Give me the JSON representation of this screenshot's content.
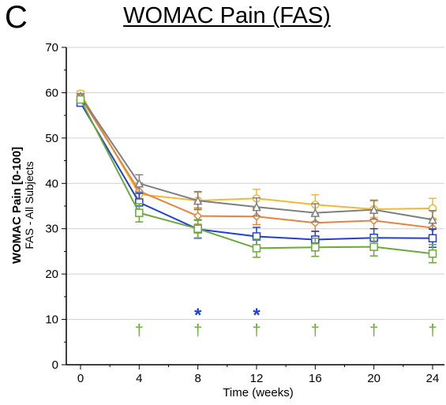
{
  "panel_label": "C",
  "chart_data": {
    "type": "line",
    "title": "WOMAC Pain (FAS)",
    "xlabel": "Time (weeks)",
    "ylabel": "WOMAC Pain [0-100]",
    "ylabel_sub": "FAS - All Subjects",
    "x": [
      0,
      4,
      8,
      12,
      16,
      20,
      24
    ],
    "xlim": [
      -1,
      25
    ],
    "ylim": [
      0,
      70
    ],
    "xticks": [
      0,
      4,
      8,
      12,
      16,
      20,
      24
    ],
    "yticks": [
      0,
      10,
      20,
      30,
      40,
      50,
      60,
      70
    ],
    "grid": "horizontal",
    "legend": "none",
    "series": [
      {
        "color": "#F5B82E",
        "marker": "circle",
        "values": [
          59.8,
          37.6,
          36.2,
          36.7,
          35.3,
          34.3,
          34.5
        ],
        "err": [
          0.6,
          1.8,
          1.8,
          2.0,
          2.2,
          1.8,
          2.2
        ]
      },
      {
        "color": "#E8833A",
        "marker": "diamond",
        "values": [
          59.0,
          38.3,
          32.8,
          32.7,
          31.3,
          31.8,
          30.2
        ],
        "err": [
          0.6,
          1.8,
          1.8,
          1.8,
          1.8,
          1.8,
          1.8
        ]
      },
      {
        "color": "#7F7F7F",
        "marker": "triangle",
        "values": [
          59.2,
          40.0,
          36.2,
          34.8,
          33.5,
          34.2,
          32.0
        ],
        "err": [
          0.6,
          1.9,
          2.0,
          2.0,
          2.0,
          2.1,
          2.0
        ]
      },
      {
        "color": "#1F3FD6",
        "marker": "square",
        "values": [
          57.8,
          35.8,
          29.9,
          28.3,
          27.6,
          28.0,
          27.9
        ],
        "err": [
          0.6,
          2.0,
          2.0,
          2.0,
          1.8,
          2.0,
          2.0
        ]
      },
      {
        "color": "#6AAA3A",
        "marker": "square",
        "values": [
          58.5,
          33.5,
          30.0,
          25.7,
          25.9,
          26.0,
          24.5
        ],
        "err": [
          0.6,
          2.0,
          2.0,
          2.0,
          2.0,
          2.0,
          2.0
        ]
      }
    ],
    "annotations": [
      {
        "text": "*",
        "x": 8,
        "y": 12,
        "color": "#1F3FD6"
      },
      {
        "text": "*",
        "x": 12,
        "y": 12,
        "color": "#1F3FD6"
      },
      {
        "text": "†",
        "x": 4,
        "y": 7.5,
        "color": "#6AAA3A"
      },
      {
        "text": "†",
        "x": 8,
        "y": 7.5,
        "color": "#6AAA3A"
      },
      {
        "text": "†",
        "x": 12,
        "y": 7.5,
        "color": "#6AAA3A"
      },
      {
        "text": "†",
        "x": 16,
        "y": 7.5,
        "color": "#6AAA3A"
      },
      {
        "text": "†",
        "x": 20,
        "y": 7.5,
        "color": "#6AAA3A"
      },
      {
        "text": "†",
        "x": 24,
        "y": 7.5,
        "color": "#6AAA3A"
      }
    ]
  }
}
